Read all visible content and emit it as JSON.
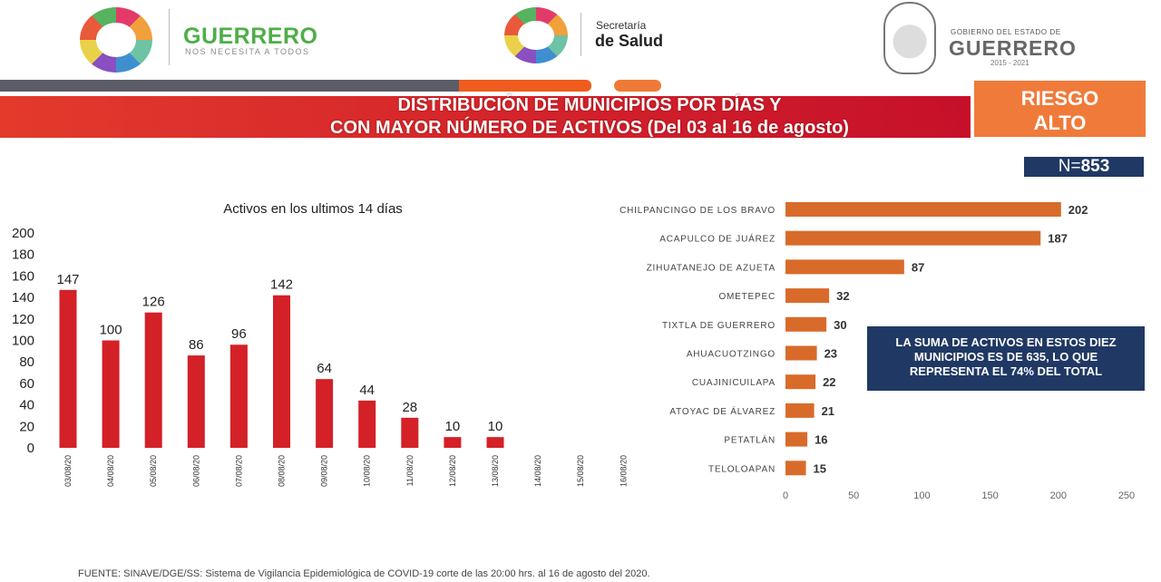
{
  "header": {
    "brand_title": "GUERRERO",
    "brand_subtitle": "NOS NECESITA A TODOS",
    "salud_top": "Secretaría",
    "salud_main": "de Salud",
    "gob_top": "GOBIERNO DEL ESTADO DE",
    "gob_main": "GUERRERO",
    "gob_years": "2015 - 2021"
  },
  "title_line1": "DISTRIBUCIÓN DE MUNICIPIOS POR DÍAS Y",
  "title_line2": "CON MAYOR NÚMERO DE ACTIVOS (Del 03 al 16 de agosto)",
  "risk_line1": "RIESGO",
  "risk_line2": "ALTO",
  "n_label": "N=",
  "n_value": "853",
  "note": "LA SUMA DE ACTIVOS EN ESTOS DIEZ MUNICIPIOS ES DE 635, LO QUE REPRESENTA EL 74% DEL TOTAL",
  "source": "FUENTE: SINAVE/DGE/SS: Sistema de Vigilancia Epidemiológica de COVID-19 corte de las 20:00 hrs. al 16 de agosto del 2020.",
  "colors": {
    "daily_bar": "#d42027",
    "municipio_bar": "#d96b2a",
    "title_band": "#d42027",
    "risk_box": "#f07a3a",
    "navy": "#203864"
  },
  "chart_data": [
    {
      "type": "bar",
      "title": "Activos en los ultimos 14 días",
      "categories": [
        "03/08/20",
        "04/08/20",
        "05/08/20",
        "06/08/20",
        "07/08/20",
        "08/08/20",
        "09/08/20",
        "10/08/20",
        "11/08/20",
        "12/08/20",
        "13/08/20",
        "14/08/20",
        "15/08/20",
        "16/08/20"
      ],
      "values": [
        147,
        100,
        126,
        86,
        96,
        142,
        64,
        44,
        28,
        10,
        10,
        null,
        null,
        null
      ],
      "ylim": [
        0,
        200
      ],
      "yticks": [
        0,
        20,
        40,
        60,
        80,
        100,
        120,
        140,
        160,
        180,
        200
      ],
      "grid": false
    },
    {
      "type": "bar",
      "orientation": "horizontal",
      "categories": [
        "CHILPANCINGO DE LOS BRAVO",
        "ACAPULCO DE JUÁREZ",
        "ZIHUATANEJO DE AZUETA",
        "OMETEPEC",
        "TIXTLA DE GUERRERO",
        "AHUACUOTZINGO",
        "CUAJINICUILAPA",
        "ATOYAC DE ÁLVAREZ",
        "PETATLÁN",
        "TELOLOAPAN"
      ],
      "values": [
        202,
        187,
        87,
        32,
        30,
        23,
        22,
        21,
        16,
        15
      ],
      "xlim": [
        0,
        250
      ],
      "xticks": [
        0,
        50,
        100,
        150,
        200,
        250
      ],
      "grid": false
    }
  ]
}
